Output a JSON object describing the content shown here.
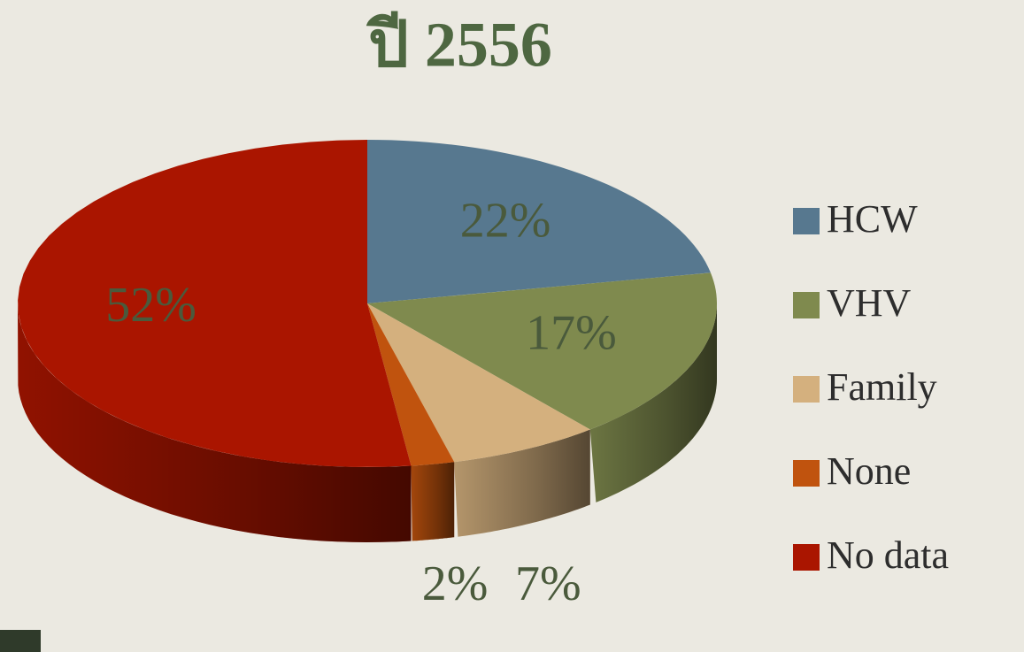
{
  "chart_data": {
    "type": "pie3d",
    "title": "ปี 2556",
    "categories": [
      "HCW",
      "VHV",
      "Family",
      "None",
      "No data"
    ],
    "values": [
      22,
      17,
      7,
      2,
      52
    ],
    "value_labels": [
      "22%",
      "17%",
      "7%",
      "2%",
      "52%"
    ],
    "colors": [
      "#57788f",
      "#7f8a4e",
      "#d4b07e",
      "#c0530e",
      "#aa1500"
    ],
    "legend": "right"
  }
}
